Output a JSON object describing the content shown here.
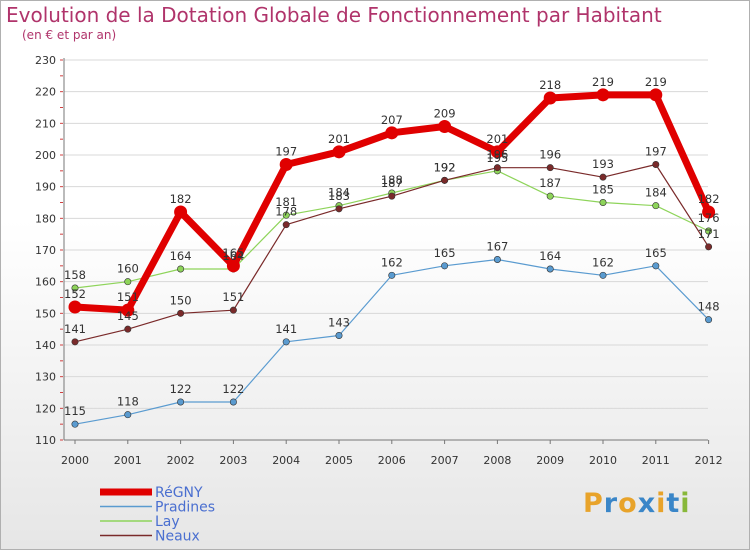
{
  "title": "Evolution de la Dotation Globale de Fonctionnement par Habitant",
  "subtitle": "(en € et par an)",
  "logo": {
    "letters": [
      "P",
      "r",
      "o",
      "x",
      "i",
      "t",
      "i"
    ],
    "colors": [
      "#e8a32a",
      "#3a86c8",
      "#e8a32a",
      "#3a86c8",
      "#e8a32a",
      "#3a86c8",
      "#88b83a"
    ]
  },
  "chart_data": {
    "type": "line",
    "title": "Evolution de la Dotation Globale de Fonctionnement par Habitant",
    "ylabel": "(en € et par an)",
    "xlabel": "",
    "ylim": [
      110,
      230
    ],
    "yticks": [
      110,
      120,
      130,
      140,
      150,
      160,
      170,
      180,
      190,
      200,
      210,
      220,
      230
    ],
    "grid": true,
    "legend": "bottom-left",
    "categories": [
      "2000",
      "2001",
      "2002",
      "2003",
      "2004",
      "2005",
      "2006",
      "2007",
      "2008",
      "2009",
      "2010",
      "2011",
      "2012"
    ],
    "series": [
      {
        "name": "Pradines",
        "color": "#5a9bd0",
        "values": [
          115,
          118,
          122,
          122,
          141,
          143,
          162,
          165,
          167,
          164,
          162,
          165,
          148
        ]
      },
      {
        "name": "Lay",
        "color": "#8ed45a",
        "values": [
          158,
          160,
          164,
          164,
          181,
          184,
          188,
          192,
          195,
          187,
          185,
          184,
          176
        ]
      },
      {
        "name": "Neaux",
        "color": "#7a2a2a",
        "values": [
          141,
          145,
          150,
          151,
          178,
          183,
          187,
          192,
          196,
          196,
          193,
          197,
          171
        ]
      },
      {
        "name": "RéGNY",
        "color": "#e00000",
        "values": [
          152,
          151,
          182,
          165,
          197,
          201,
          207,
          209,
          201,
          218,
          219,
          219,
          182
        ]
      }
    ]
  }
}
